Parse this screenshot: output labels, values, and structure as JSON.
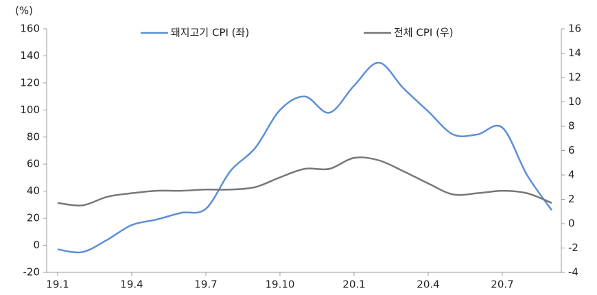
{
  "chart_data": {
    "type": "line",
    "y_unit_label": "(%)",
    "categories": [
      "19.1",
      null,
      null,
      "19.4",
      null,
      null,
      "19.7",
      null,
      null,
      "19.10",
      null,
      null,
      "20.1",
      null,
      null,
      "20.4",
      null,
      null,
      "20.7",
      null,
      null
    ],
    "series": [
      {
        "name": "돼지고기 CPI (좌)",
        "color": "#5b8fd6",
        "axis": "y",
        "values": [
          -3,
          -5,
          4,
          15,
          19,
          24,
          27,
          55,
          72,
          100,
          110,
          98,
          118,
          135,
          116,
          99,
          82,
          82,
          87,
          52,
          26
        ]
      },
      {
        "name": "전체 CPI (우)",
        "color": "#777777",
        "axis": "y2",
        "values": [
          1.7,
          1.5,
          2.2,
          2.5,
          2.7,
          2.7,
          2.8,
          2.8,
          3.0,
          3.8,
          4.5,
          4.5,
          5.4,
          5.2,
          4.3,
          3.3,
          2.4,
          2.5,
          2.7,
          2.5,
          1.7
        ]
      }
    ],
    "ylim": [
      -20,
      160
    ],
    "yticks": [
      -20,
      0,
      20,
      40,
      60,
      80,
      100,
      120,
      140,
      160
    ],
    "y2lim": [
      -4,
      16
    ],
    "y2ticks": [
      -4,
      -2,
      0,
      2,
      4,
      6,
      8,
      10,
      12,
      14,
      16
    ],
    "legend": "top"
  }
}
